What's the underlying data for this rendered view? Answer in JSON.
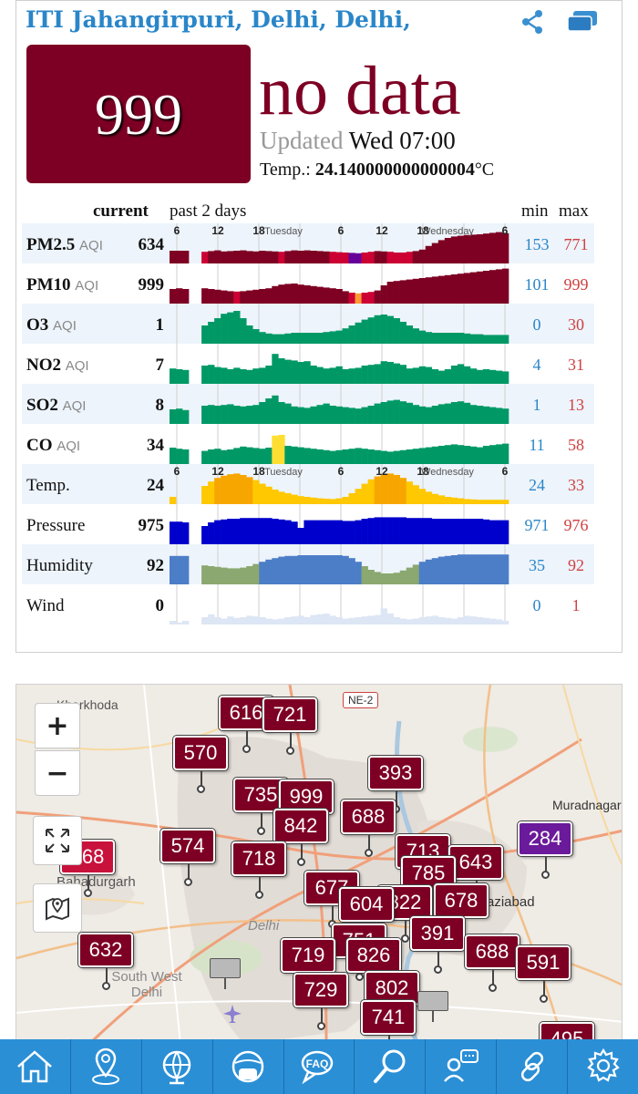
{
  "station": {
    "name": "ITI Jahangirpuri, Delhi, Delhi,"
  },
  "header_icons": [
    "share-icon",
    "stations-icon"
  ],
  "aqi": {
    "value": "999",
    "status": "no data",
    "color": "#7d0024"
  },
  "updated": {
    "label": "Updated",
    "value": "Wed 07:00"
  },
  "temperature": {
    "label": "Temp.:",
    "value": "24.140000000000004",
    "unit": "°C"
  },
  "table": {
    "col_current": "current",
    "col_past": "past 2 days",
    "col_min": "min",
    "col_max": "max",
    "time_axis_labels": [
      "6",
      "12",
      "18",
      "Tuesday",
      "6",
      "12",
      "18",
      "Wednesday",
      "6"
    ],
    "rows": [
      {
        "name": "PM2.5",
        "sub": "AQI",
        "current": "634",
        "min": "153",
        "max": "771",
        "kind": "pm25",
        "values": [
          0.35,
          0.35,
          0.35,
          null,
          null,
          0.32,
          0.34,
          0.36,
          0.33,
          0.34,
          0.35,
          0.36,
          0.34,
          0.33,
          0.35,
          0.34,
          0.33,
          0.32,
          0.34,
          0.36,
          0.35,
          0.36,
          0.35,
          0.34,
          0.33,
          0.32,
          0.31,
          0.3,
          0.29,
          0.28,
          0.3,
          0.32,
          0.34,
          0.33,
          0.32,
          0.3,
          0.3,
          0.32,
          0.34,
          0.38,
          0.48,
          0.56,
          0.64,
          0.7,
          0.74,
          0.76,
          0.78,
          0.79,
          0.8,
          0.82,
          0.84,
          0.86,
          0.83
        ]
      },
      {
        "name": "PM10",
        "sub": "AQI",
        "current": "999",
        "min": "101",
        "max": "999",
        "kind": "pm10",
        "values": [
          0.4,
          0.42,
          0.4,
          null,
          null,
          0.42,
          0.4,
          0.38,
          0.36,
          0.34,
          0.33,
          0.34,
          0.36,
          0.38,
          0.4,
          0.42,
          0.48,
          0.52,
          0.54,
          0.55,
          0.52,
          0.5,
          0.48,
          0.46,
          0.44,
          0.42,
          0.4,
          0.34,
          0.3,
          0.28,
          0.3,
          0.32,
          0.36,
          0.5,
          0.6,
          0.62,
          0.64,
          0.66,
          0.68,
          0.7,
          0.72,
          0.74,
          0.76,
          0.78,
          0.8,
          0.82,
          0.84,
          0.86,
          0.88,
          0.9,
          0.92,
          0.94,
          0.96
        ]
      },
      {
        "name": "O3",
        "sub": "AQI",
        "current": "1",
        "min": "0",
        "max": "30",
        "kind": "green",
        "values": [
          null,
          null,
          null,
          null,
          null,
          0.5,
          0.6,
          0.7,
          0.82,
          0.86,
          0.9,
          0.7,
          0.5,
          0.4,
          0.32,
          0.28,
          0.26,
          0.26,
          0.28,
          0.3,
          0.3,
          0.3,
          0.3,
          0.3,
          0.32,
          0.34,
          0.36,
          0.42,
          0.5,
          0.58,
          0.66,
          0.72,
          0.78,
          0.8,
          0.76,
          0.7,
          0.6,
          0.5,
          0.42,
          0.36,
          0.32,
          0.3,
          0.3,
          0.3,
          0.3,
          0.3,
          0.28,
          0.26,
          0.26,
          0.24,
          0.24,
          0.24,
          0.24
        ]
      },
      {
        "name": "NO2",
        "sub": "AQI",
        "current": "7",
        "min": "4",
        "max": "31",
        "kind": "green",
        "values": [
          0.42,
          0.4,
          0.38,
          null,
          null,
          0.5,
          0.52,
          0.46,
          0.44,
          0.4,
          0.44,
          0.4,
          0.38,
          0.42,
          0.44,
          0.5,
          0.82,
          0.7,
          0.66,
          0.64,
          0.6,
          0.62,
          0.5,
          0.46,
          0.42,
          0.44,
          0.48,
          0.4,
          0.42,
          0.44,
          0.5,
          0.52,
          0.54,
          0.62,
          0.6,
          0.56,
          0.52,
          0.42,
          0.44,
          0.48,
          0.46,
          0.4,
          0.36,
          0.4,
          0.5,
          0.54,
          0.48,
          0.42,
          0.38,
          0.4,
          0.38,
          0.36,
          0.34
        ]
      },
      {
        "name": "SO2",
        "sub": "AQI",
        "current": "8",
        "min": "1",
        "max": "13",
        "kind": "green",
        "values": [
          0.4,
          0.42,
          0.38,
          null,
          null,
          0.5,
          0.52,
          0.5,
          0.52,
          0.54,
          0.5,
          0.48,
          0.5,
          0.52,
          0.6,
          0.7,
          0.78,
          0.6,
          0.56,
          0.48,
          0.46,
          0.44,
          0.48,
          0.52,
          0.56,
          0.5,
          0.48,
          0.46,
          0.44,
          0.42,
          0.46,
          0.5,
          0.56,
          0.6,
          0.64,
          0.66,
          0.62,
          0.58,
          0.52,
          0.48,
          0.46,
          0.5,
          0.54,
          0.56,
          0.6,
          0.62,
          0.58,
          0.52,
          0.5,
          0.48,
          0.46,
          0.44,
          0.42
        ]
      },
      {
        "name": "CO",
        "sub": "AQI",
        "current": "34",
        "min": "11",
        "max": "58",
        "kind": "green",
        "values": [
          0.45,
          0.42,
          0.4,
          null,
          null,
          0.36,
          0.4,
          0.42,
          0.38,
          0.4,
          0.44,
          0.48,
          0.46,
          0.44,
          0.42,
          0.45,
          0.78,
          0.8,
          0.5,
          0.48,
          0.46,
          0.44,
          0.42,
          0.4,
          0.38,
          0.36,
          0.38,
          0.4,
          0.42,
          0.44,
          0.42,
          0.4,
          0.38,
          0.36,
          0.34,
          0.36,
          0.38,
          0.4,
          0.42,
          0.44,
          0.46,
          0.48,
          0.5,
          0.52,
          0.54,
          0.52,
          0.5,
          0.48,
          0.46,
          0.5,
          0.52,
          0.54,
          0.56
        ]
      },
      {
        "name": "Temp.",
        "sub": "",
        "current": "24",
        "min": "24",
        "max": "33",
        "kind": "temp",
        "values": [
          0.2,
          null,
          null,
          null,
          null,
          0.5,
          0.62,
          0.72,
          0.78,
          0.82,
          0.84,
          0.8,
          0.74,
          0.66,
          0.56,
          0.48,
          0.4,
          0.34,
          0.3,
          0.26,
          0.22,
          0.2,
          0.18,
          0.16,
          0.15,
          0.14,
          0.16,
          0.2,
          0.3,
          0.42,
          0.56,
          0.68,
          0.76,
          0.82,
          0.84,
          0.8,
          0.72,
          0.62,
          0.52,
          0.42,
          0.34,
          0.28,
          0.24,
          0.2,
          0.18,
          0.16,
          0.14,
          0.13,
          0.12,
          0.12,
          0.12,
          0.12,
          0.12
        ]
      },
      {
        "name": "Pressure",
        "sub": "",
        "current": "975",
        "min": "971",
        "max": "976",
        "kind": "pressure",
        "values": [
          0.62,
          0.62,
          0.6,
          null,
          null,
          0.5,
          0.6,
          0.66,
          0.68,
          0.7,
          0.7,
          0.72,
          0.72,
          0.72,
          0.72,
          0.72,
          0.7,
          0.68,
          0.66,
          0.62,
          0.45,
          0.66,
          0.66,
          0.66,
          0.66,
          0.66,
          0.66,
          0.64,
          0.64,
          0.66,
          0.7,
          0.72,
          0.74,
          0.74,
          0.74,
          0.74,
          0.74,
          0.72,
          0.72,
          0.72,
          0.72,
          0.7,
          0.7,
          0.7,
          0.7,
          0.7,
          0.7,
          0.7,
          0.7,
          0.68,
          0.66,
          0.66,
          0.66
        ]
      },
      {
        "name": "Humidity",
        "sub": "",
        "current": "92",
        "min": "35",
        "max": "92",
        "kind": "humidity",
        "values": [
          0.78,
          0.78,
          0.78,
          null,
          null,
          0.52,
          0.5,
          0.48,
          0.46,
          0.44,
          0.44,
          0.46,
          0.5,
          0.56,
          0.62,
          0.68,
          0.72,
          0.76,
          0.78,
          0.78,
          0.8,
          0.8,
          0.8,
          0.8,
          0.8,
          0.8,
          0.8,
          0.78,
          0.72,
          0.62,
          0.5,
          0.4,
          0.34,
          0.3,
          0.3,
          0.32,
          0.38,
          0.46,
          0.54,
          0.62,
          0.68,
          0.72,
          0.76,
          0.78,
          0.8,
          0.82,
          0.82,
          0.82,
          0.82,
          0.82,
          0.82,
          0.82,
          0.82
        ]
      },
      {
        "name": "Wind",
        "sub": "",
        "current": "0",
        "min": "0",
        "max": "1",
        "kind": "wind",
        "values": [
          0.1,
          0.05,
          0.1,
          null,
          null,
          0.2,
          0.28,
          0.2,
          0.16,
          0.22,
          0.18,
          0.2,
          0.24,
          0.22,
          0.2,
          0.16,
          0.14,
          0.16,
          0.2,
          0.22,
          0.24,
          0.2,
          0.26,
          0.28,
          0.3,
          0.24,
          0.2,
          0.16,
          0.18,
          0.2,
          0.22,
          0.24,
          0.26,
          0.44,
          0.3,
          0.2,
          0.16,
          0.14,
          0.16,
          0.2,
          0.22,
          0.24,
          0.2,
          0.18,
          0.16,
          0.2,
          0.24,
          0.22,
          0.2,
          0.18,
          0.16,
          0.14,
          0.1
        ]
      }
    ]
  },
  "map": {
    "zoom_in": "+",
    "zoom_out": "−",
    "place_labels": [
      "Kharkhoda",
      "Bahadurgarh",
      "Delhi",
      "South West Delhi",
      "Muradnagar",
      "Ghaziabad"
    ],
    "road_badges": [
      "NE-2"
    ],
    "markers": [
      {
        "value": "616",
        "color": "#7d0024"
      },
      {
        "value": "721",
        "color": "#7d0024"
      },
      {
        "value": "570",
        "color": "#7d0024"
      },
      {
        "value": "393",
        "color": "#7d0024"
      },
      {
        "value": "735",
        "color": "#7d0024"
      },
      {
        "value": "999",
        "color": "#7d0024"
      },
      {
        "value": "688",
        "color": "#7d0024"
      },
      {
        "value": "842",
        "color": "#7d0024"
      },
      {
        "value": "284",
        "color": "#6a1a9a"
      },
      {
        "value": "574",
        "color": "#7d0024"
      },
      {
        "value": "168",
        "color": "#c8123c"
      },
      {
        "value": "718",
        "color": "#7d0024"
      },
      {
        "value": "713",
        "color": "#7d0024"
      },
      {
        "value": "643",
        "color": "#7d0024"
      },
      {
        "value": "785",
        "color": "#7d0024"
      },
      {
        "value": "677",
        "color": "#7d0024"
      },
      {
        "value": "678",
        "color": "#7d0024"
      },
      {
        "value": "822",
        "color": "#7d0024"
      },
      {
        "value": "604",
        "color": "#7d0024"
      },
      {
        "value": "632",
        "color": "#7d0024"
      },
      {
        "value": "391",
        "color": "#7d0024"
      },
      {
        "value": "751",
        "color": "#7d0024"
      },
      {
        "value": "719",
        "color": "#7d0024"
      },
      {
        "value": "826",
        "color": "#7d0024"
      },
      {
        "value": "688",
        "color": "#7d0024"
      },
      {
        "value": "591",
        "color": "#7d0024"
      },
      {
        "value": "729",
        "color": "#7d0024"
      },
      {
        "value": "802",
        "color": "#7d0024"
      },
      {
        "value": "741",
        "color": "#7d0024"
      },
      {
        "value": "495",
        "color": "#7d0024"
      }
    ]
  },
  "nav": {
    "items": [
      "home-icon",
      "location-pin-icon",
      "globe-icon",
      "mask-icon",
      "faq-icon",
      "search-icon",
      "feedback-icon",
      "link-icon",
      "settings-icon"
    ]
  },
  "colors": {
    "good": "#009966",
    "moderate": "#ffde33",
    "unhealthy_sensitive": "#ff9933",
    "unhealthy": "#cc0033",
    "very_unhealthy": "#660099",
    "hazardous": "#7e0023",
    "accent": "#2a86c8"
  }
}
